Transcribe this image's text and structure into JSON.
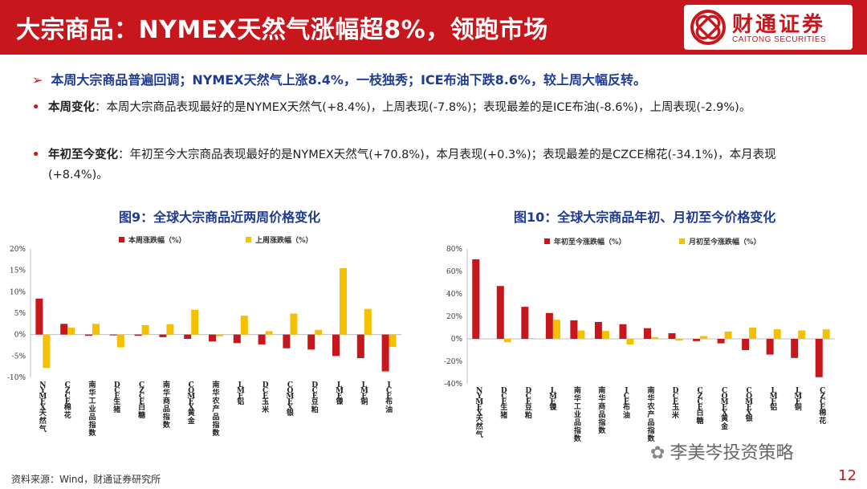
{
  "header": {
    "title": "大宗商品：NYMEX天然气涨幅超8%，领跑市场",
    "logo_cn": "财通证券",
    "logo_en": "CAITONG SECURITIES"
  },
  "headline": "本周大宗商品普遍回调；NYMEX天然气上涨8.4%，一枝独秀；ICE布油下跌8.6%，较上周大幅反转。",
  "bullets": [
    {
      "label": "本周变化",
      "text": "：本周大宗商品表现最好的是NYMEX天然气(+8.4%)，上周表现(-7.8%)；表现最差的是ICE布油(-8.6%)，上周表现(-2.9%)。"
    },
    {
      "label": "年初至今变化",
      "text": "：年初至今大宗商品表现最好的是NYMEX天然气(+70.8%)，本月表现(+0.3%)；表现最差的是CZCE棉花(-34.1%)，本月表现(+8.4%)。"
    }
  ],
  "source": "资料来源：Wind，财通证券研究所",
  "page_number": "12",
  "watermark": "李美岑投资策略",
  "colors": {
    "red": "#c8161d",
    "yellow": "#f5c000",
    "blue": "#1f3a93"
  },
  "chart_data": [
    {
      "type": "bar",
      "title": "图9：全球大宗商品近两周价格变化",
      "categories": [
        "NYMEX天然气",
        "CZCE棉花",
        "南华工业品指数",
        "DCE生猪",
        "CZCE白糖",
        "南华商品指数",
        "COMEX黄金",
        "南华农产品指数",
        "LME铝",
        "DCE玉米",
        "COMEX银",
        "DCE豆粕",
        "LME镍",
        "LME铜",
        "ICE布油"
      ],
      "series": [
        {
          "name": "本周涨跌幅（%）",
          "color": "#c8161d",
          "values": [
            8.4,
            2.5,
            -0.3,
            -0.2,
            -0.3,
            -0.6,
            -1.0,
            -1.6,
            -2.0,
            -2.3,
            -3.2,
            -3.5,
            -5.0,
            -5.5,
            -8.6
          ]
        },
        {
          "name": "上周涨跌幅（%）",
          "color": "#f5c000",
          "values": [
            -7.8,
            1.6,
            2.5,
            -3.0,
            2.2,
            2.4,
            5.8,
            -0.4,
            4.4,
            0.8,
            4.9,
            1.1,
            15.5,
            6.0,
            -2.9
          ]
        }
      ],
      "ylim": [
        -10,
        20
      ],
      "yticks": [
        -10,
        -5,
        0,
        5,
        10,
        15,
        20
      ],
      "ytick_labels": [
        "-10%",
        "-5%",
        "0%",
        "5%",
        "10%",
        "15%",
        "20%"
      ],
      "legend_position": "top"
    },
    {
      "type": "bar",
      "title": "图10：全球大宗商品年初、月初至今价格变化",
      "categories": [
        "NYMEX天然气",
        "DCE生猪",
        "DCE豆粕",
        "LME镍",
        "南华工业品指数",
        "南华商品指数",
        "ICE布油",
        "南华农产品指数",
        "DCE玉米",
        "CZCE白糖",
        "COMEX黄金",
        "COMEX银",
        "LME铝",
        "LME铜",
        "CZCE棉花"
      ],
      "series": [
        {
          "name": "年初至今涨跌幅（%）",
          "color": "#c8161d",
          "values": [
            70.8,
            47.0,
            28.5,
            23.0,
            16.5,
            15.0,
            13.0,
            9.5,
            5.0,
            -2.0,
            -4.0,
            -10.0,
            -14.0,
            -17.0,
            -34.1
          ]
        },
        {
          "name": "月初至今涨跌幅（%）",
          "color": "#f5c000",
          "values": [
            0.3,
            -3.0,
            0.5,
            17.0,
            7.5,
            7.0,
            -5.0,
            1.5,
            -1.5,
            2.5,
            6.5,
            10.0,
            8.5,
            7.5,
            8.4
          ]
        }
      ],
      "ylim": [
        -40,
        80
      ],
      "yticks": [
        -40,
        -20,
        0,
        20,
        40,
        60,
        80
      ],
      "ytick_labels": [
        "-40%",
        "-20%",
        "0%",
        "20%",
        "40%",
        "60%",
        "80%"
      ],
      "legend_position": "top"
    }
  ]
}
